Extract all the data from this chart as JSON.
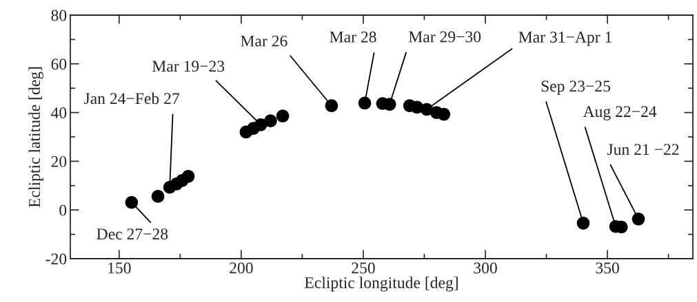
{
  "chart_data": {
    "type": "scatter",
    "xlabel": "Ecliptic longitude [deg]",
    "ylabel": "Ecliptic latitude [deg]",
    "x": [
      155.1,
      165.9,
      170.7,
      173.5,
      175.8,
      178.3,
      202,
      205,
      208,
      212,
      217,
      237,
      250.6,
      257.9,
      260.8,
      269,
      272,
      276,
      280,
      283,
      340.1,
      353.4,
      355.7,
      362.7
    ],
    "series": [
      {
        "color": "#000000",
        "values": [
          3.1,
          5.6,
          9.3,
          10.7,
          12.1,
          13.8,
          32,
          33.5,
          35,
          36.6,
          38.6,
          42.8,
          43.9,
          43.7,
          43.4,
          42.8,
          42.2,
          41.3,
          40,
          39.3,
          -5.4,
          -6.8,
          -7.0,
          -3.7
        ]
      }
    ],
    "marker": "circle",
    "xlim": [
      130,
      385
    ],
    "ylim": [
      -20,
      80
    ],
    "xticks": [
      150,
      200,
      250,
      300,
      350
    ],
    "yticks": [
      -20,
      0,
      20,
      40,
      60,
      80
    ],
    "annotations": [
      {
        "text": "Dec 27−28",
        "x": 155.1,
        "y": 3.1
      },
      {
        "text": "Jan 24−Feb 27",
        "x": 170.7,
        "y": 9.3
      },
      {
        "text": "Mar 19−23",
        "x": 208,
        "y": 35
      },
      {
        "text": "Mar 26",
        "x": 237,
        "y": 42.8
      },
      {
        "text": "Mar 28",
        "x": 250.6,
        "y": 43.9
      },
      {
        "text": "Mar 29−30",
        "x": 260.8,
        "y": 43.4
      },
      {
        "text": "Mar 31−Apr 1",
        "x": 276,
        "y": 41.3
      },
      {
        "text": "Sep 23−25",
        "x": 340.1,
        "y": -5.4
      },
      {
        "text": "Aug 22−24",
        "x": 353.4,
        "y": -6.8
      },
      {
        "text": "Jun 21 −22",
        "x": 362.7,
        "y": -3.7
      }
    ]
  }
}
